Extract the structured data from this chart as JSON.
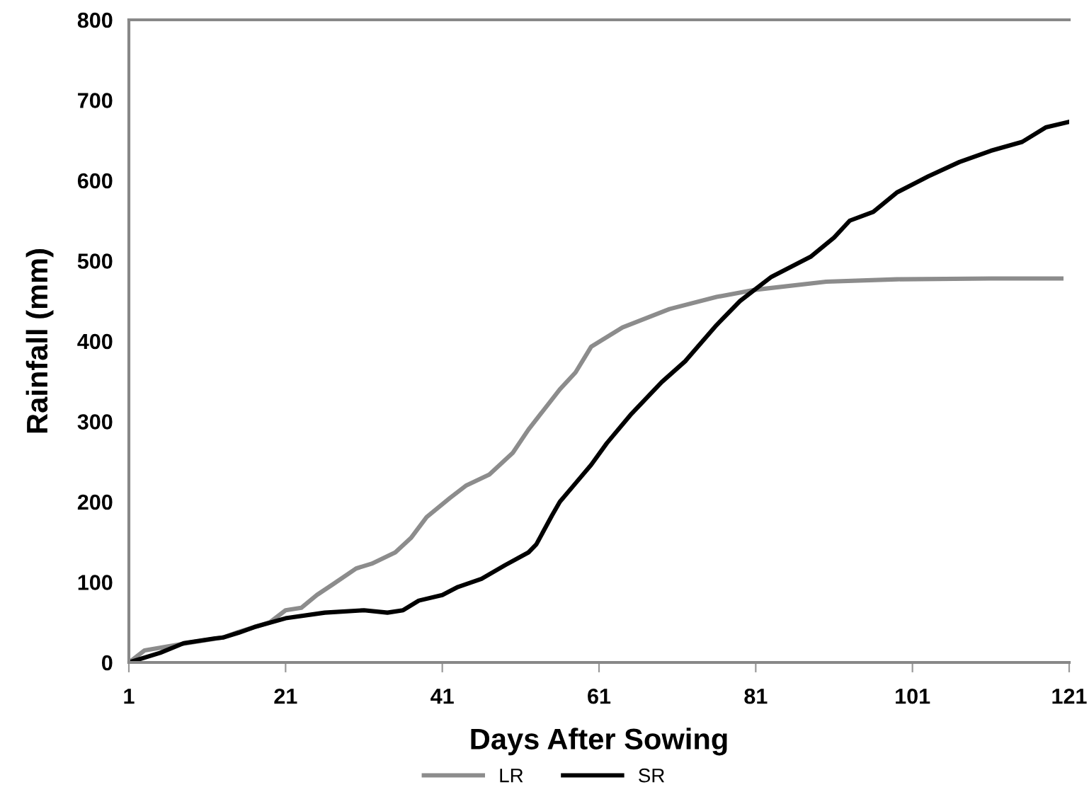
{
  "chart_data": {
    "type": "line",
    "xlabel": "Days After Sowing",
    "ylabel": "Rainfall (mm)",
    "xlim": [
      1,
      121
    ],
    "xticks": [
      1,
      21,
      41,
      61,
      81,
      101,
      121
    ],
    "ylim": [
      0,
      800
    ],
    "yticks": [
      0,
      100,
      200,
      300,
      400,
      500,
      600,
      700,
      800
    ],
    "grid": false,
    "legend": "bottom",
    "marker": "none",
    "line_style": "solid",
    "series": [
      {
        "name": "LR",
        "color": "#8c8c8c",
        "x": [
          1,
          3,
          9,
          13,
          15,
          19,
          21,
          23,
          25,
          27,
          30,
          32,
          35,
          37,
          39,
          42,
          44,
          47,
          50,
          52,
          56,
          58,
          60,
          64,
          70,
          76,
          81,
          90,
          99,
          111,
          120
        ],
        "values": [
          0,
          15,
          25,
          31,
          38,
          50,
          65,
          68,
          84,
          97,
          117,
          123,
          137,
          155,
          181,
          205,
          220,
          234,
          261,
          290,
          340,
          361,
          393,
          417,
          440,
          455,
          464,
          474,
          477,
          478,
          478
        ]
      },
      {
        "name": "SR",
        "color": "#000000",
        "x": [
          1,
          5,
          8,
          12,
          13,
          15,
          17,
          21,
          26,
          31,
          34,
          36,
          38,
          41,
          43,
          46,
          49,
          52,
          53,
          55,
          56,
          58,
          60,
          62,
          65,
          69,
          72,
          76,
          79,
          83,
          88,
          91,
          93,
          96,
          99,
          103,
          107,
          111,
          115,
          118,
          121
        ],
        "values": [
          0,
          12,
          24,
          30,
          31,
          37,
          44,
          55,
          62,
          65,
          62,
          65,
          77,
          84,
          94,
          104,
          121,
          137,
          147,
          183,
          200,
          223,
          246,
          273,
          308,
          349,
          375,
          420,
          450,
          480,
          505,
          529,
          550,
          561,
          585,
          605,
          623,
          637,
          648,
          666,
          673
        ]
      }
    ]
  }
}
